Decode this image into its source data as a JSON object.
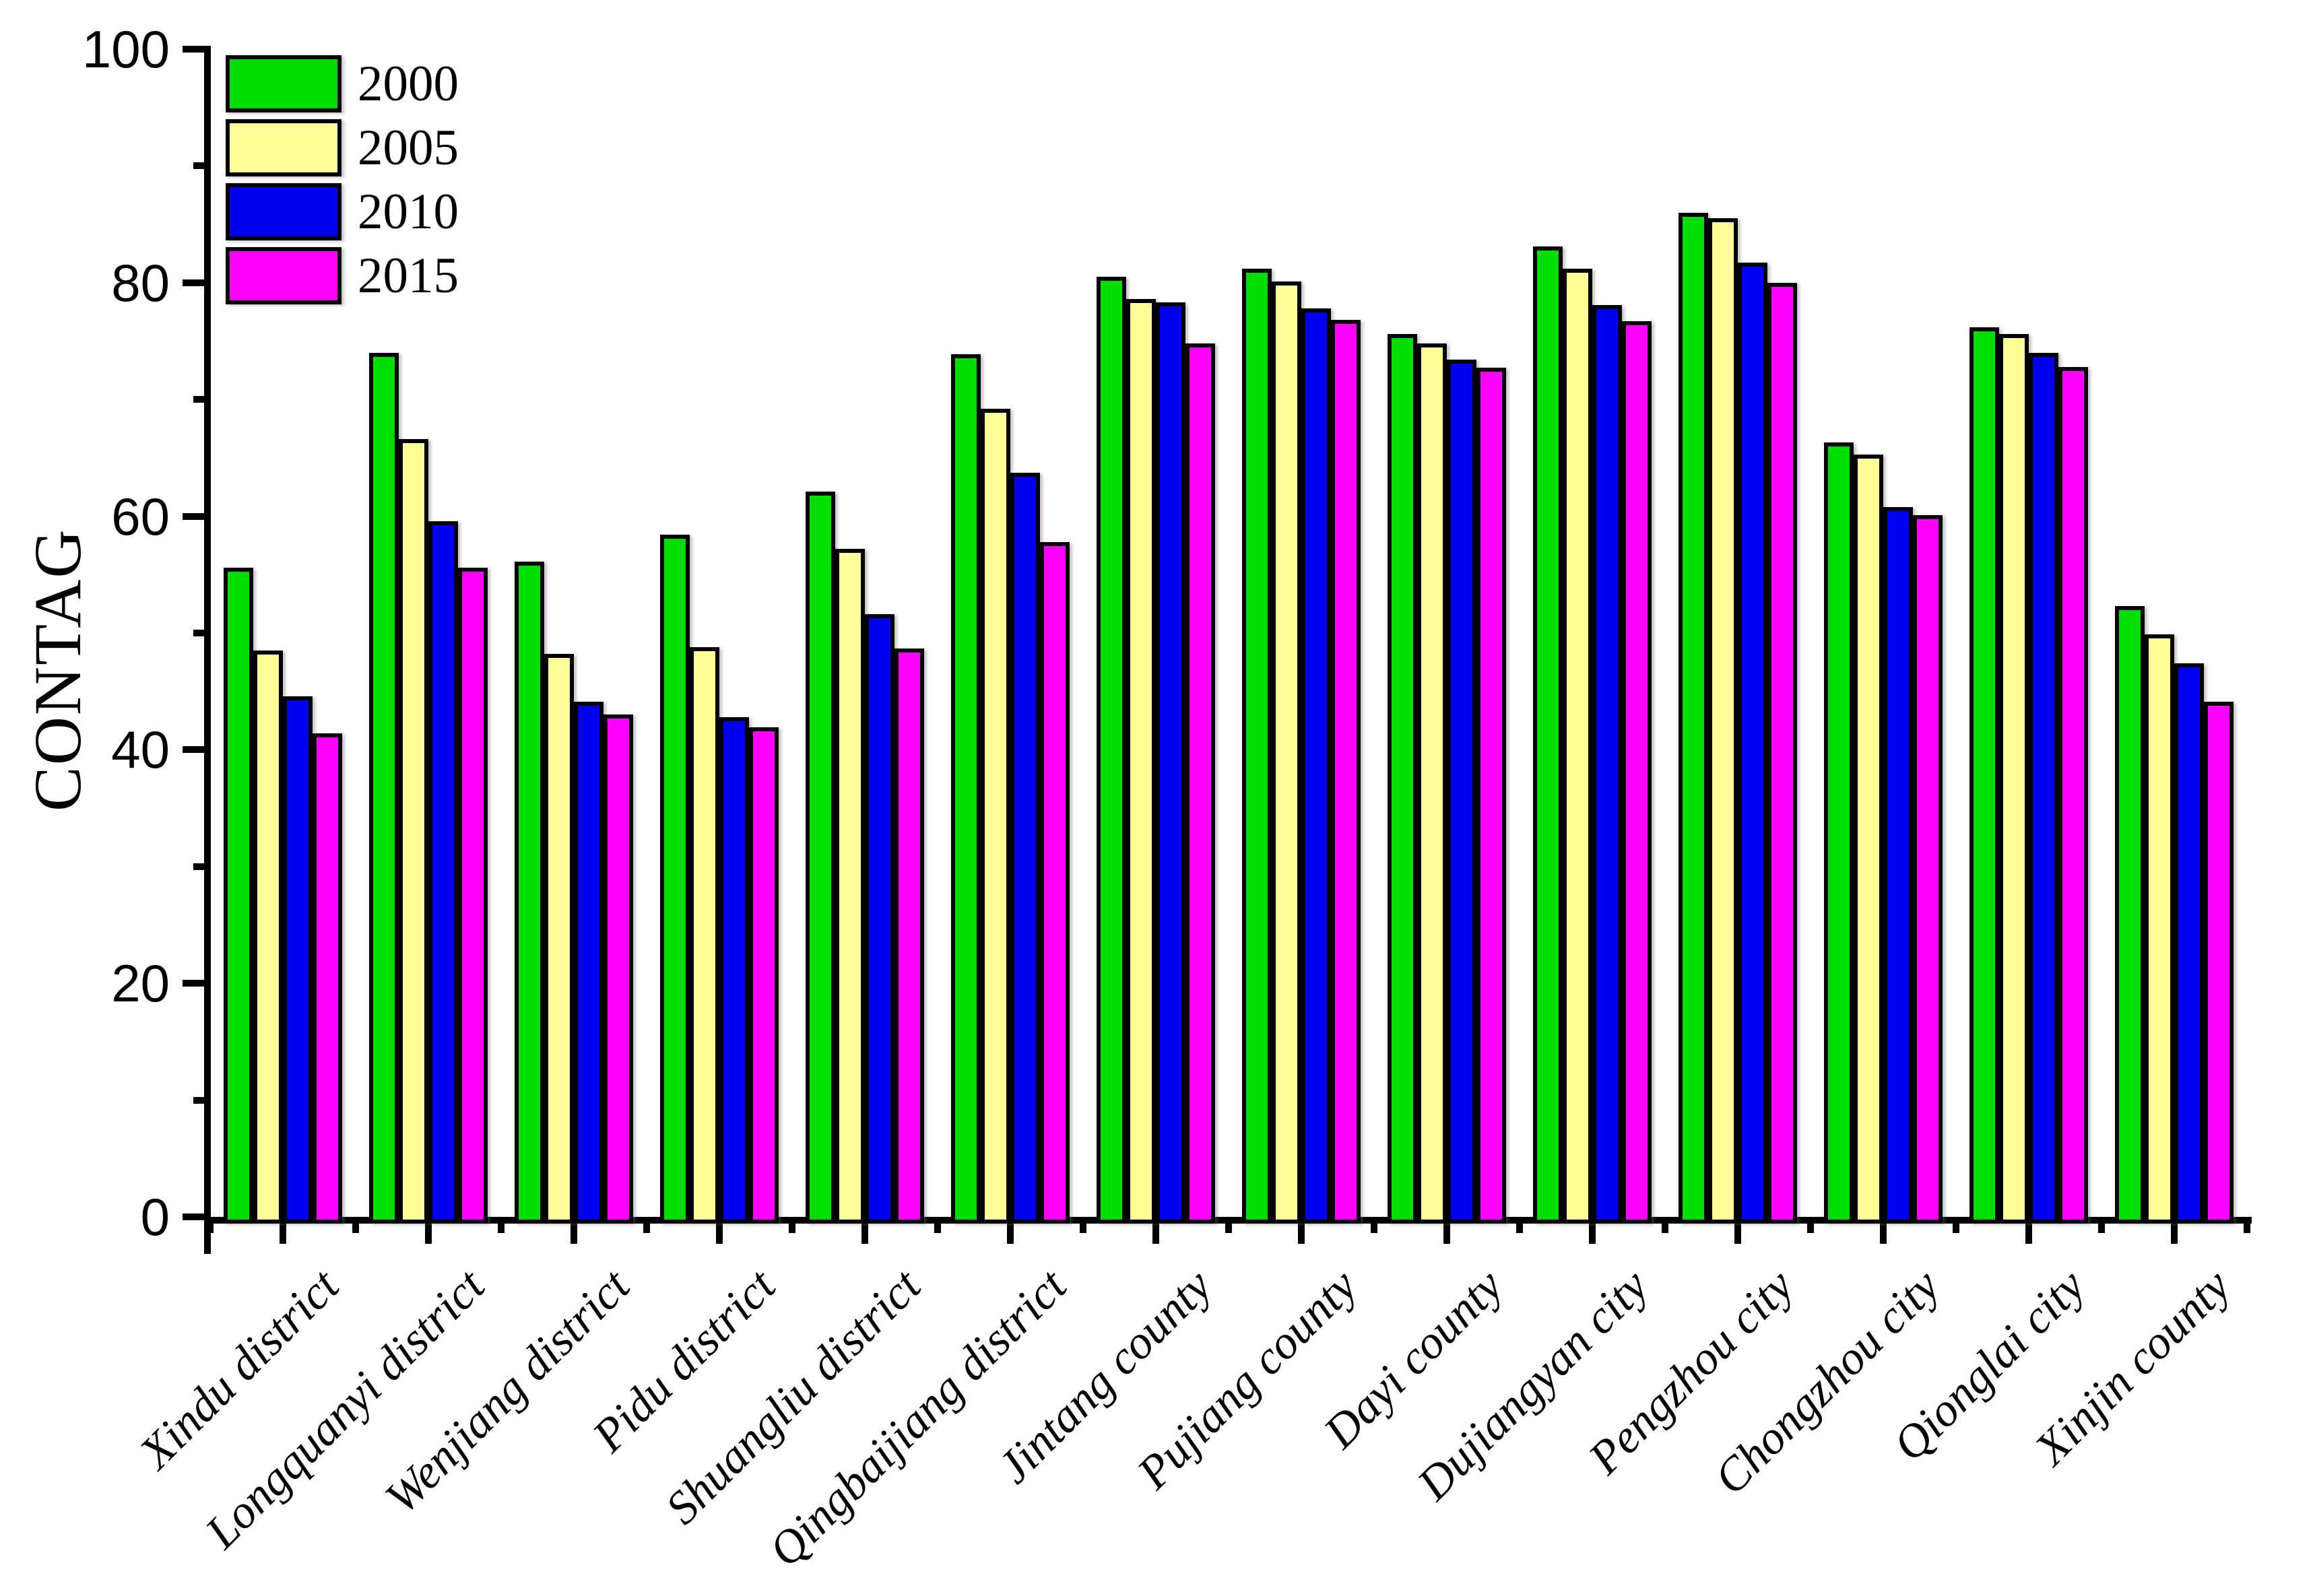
{
  "figure": {
    "background": "#ffffff"
  },
  "chart_data": {
    "type": "bar",
    "title": "",
    "ylabel": "CONTAG",
    "xlabel": "",
    "ylim": [
      0,
      100
    ],
    "yticks_major": [
      0,
      20,
      40,
      60,
      80,
      100
    ],
    "yticks_minor": [
      10,
      30,
      50,
      70,
      90
    ],
    "grid": false,
    "legend_position": "top-left",
    "bar_edge_color": "#000000",
    "categories": [
      "Xindu district",
      "Longquanyi district",
      "Wenjiang district",
      "Pidu district",
      "Shuangliu district",
      "Qingbaijiang district",
      "Jintang county",
      "Pujiang county",
      "Dayi county",
      "Dujiangyan city",
      "Pengzhou city",
      "Chongzhou city",
      "Qionglai city",
      "Xinjin county"
    ],
    "series": [
      {
        "name": "2000",
        "color": "#00dd00",
        "values": [
          55.6,
          74.0,
          56.1,
          58.4,
          62.1,
          73.9,
          80.5,
          81.2,
          75.6,
          83.1,
          86.0,
          66.3,
          76.2,
          52.3
        ]
      },
      {
        "name": "2005",
        "color": "#ffff99",
        "values": [
          48.5,
          66.6,
          48.2,
          48.8,
          57.2,
          69.2,
          78.6,
          80.1,
          74.8,
          81.2,
          85.5,
          65.3,
          75.6,
          49.9
        ]
      },
      {
        "name": "2010",
        "color": "#0000f0",
        "values": [
          44.6,
          59.6,
          44.1,
          42.8,
          51.6,
          63.7,
          78.3,
          77.8,
          73.4,
          78.1,
          81.7,
          60.8,
          74.0,
          47.4
        ]
      },
      {
        "name": "2015",
        "color": "#ff00ff",
        "values": [
          41.4,
          55.6,
          43.0,
          41.9,
          48.7,
          57.8,
          74.8,
          76.8,
          72.7,
          76.7,
          80.0,
          60.1,
          72.8,
          44.1
        ]
      }
    ]
  }
}
